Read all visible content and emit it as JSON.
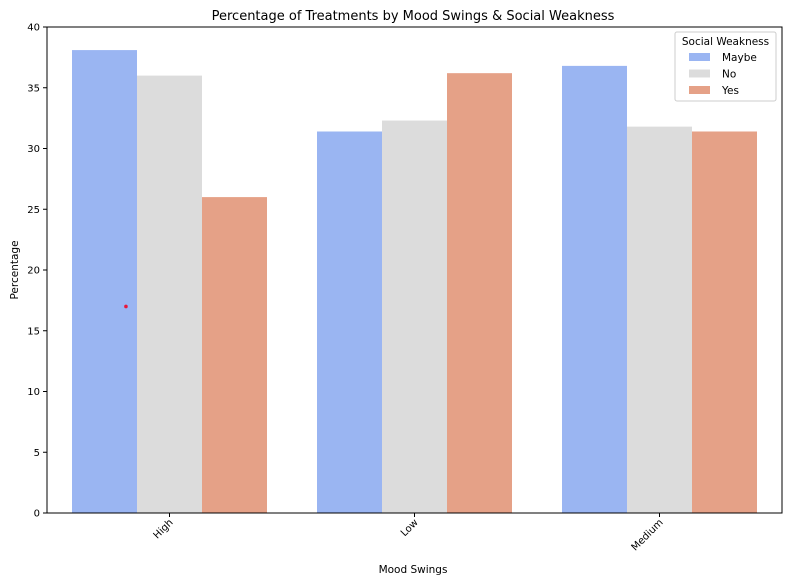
{
  "chart_data": {
    "type": "bar",
    "title": "Percentage of Treatments by Mood Swings & Social Weakness",
    "xlabel": "Mood Swings",
    "ylabel": "Percentage",
    "categories": [
      "High",
      "Low",
      "Medium"
    ],
    "ylim": [
      0,
      40
    ],
    "yticks": [
      0,
      5,
      10,
      15,
      20,
      25,
      30,
      35,
      40
    ],
    "grid": false,
    "legend": {
      "title": "Social Weakness",
      "placement": "top-right"
    },
    "series": [
      {
        "name": "Maybe",
        "color": "#9ab5f2",
        "values": [
          38.1,
          31.4,
          36.8
        ]
      },
      {
        "name": "No",
        "color": "#dcdcdc",
        "values": [
          36.0,
          32.3,
          31.8
        ]
      },
      {
        "name": "Yes",
        "color": "#e5a187",
        "values": [
          26.0,
          36.2,
          31.4
        ]
      }
    ],
    "annotation": {
      "type": "point",
      "color": "#e8173c",
      "category": "High",
      "value": 17.0
    }
  }
}
